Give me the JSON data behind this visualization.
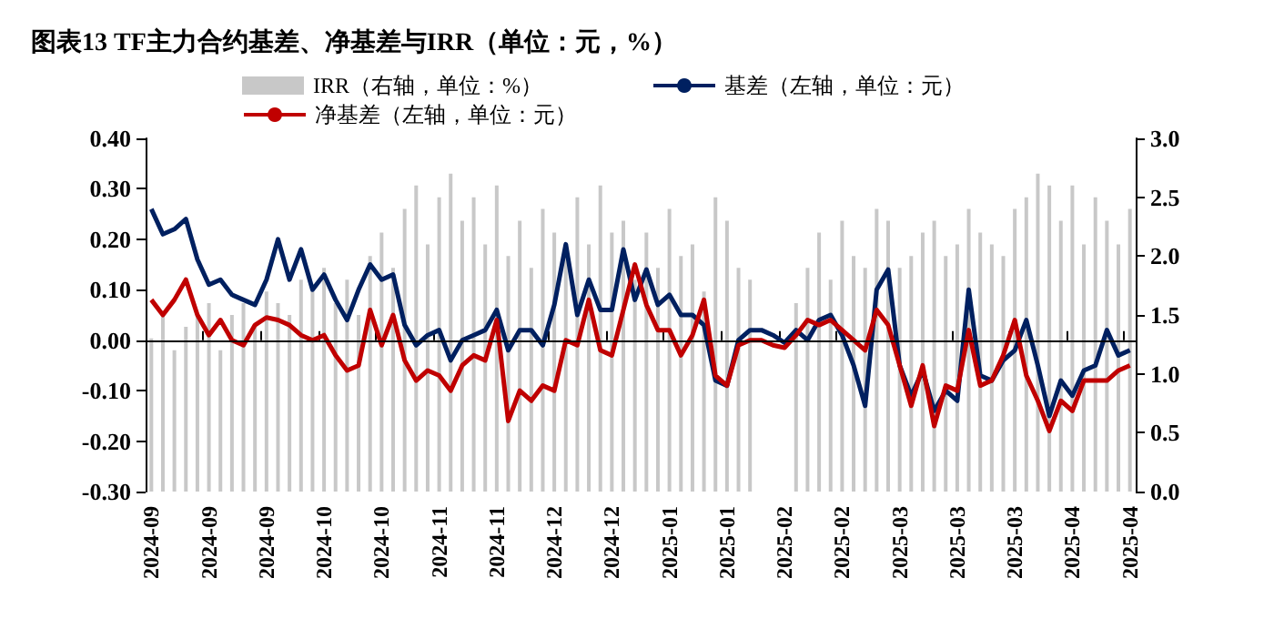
{
  "chart_data": {
    "type": "line",
    "title": "图表13 TF主力合约基差、净基差与IRR（单位：元，%）",
    "categories": [
      "2024-09",
      null,
      null,
      null,
      null,
      "2024-09",
      null,
      null,
      null,
      null,
      "2024-09",
      null,
      null,
      null,
      null,
      "2024-10",
      null,
      null,
      null,
      null,
      "2024-10",
      null,
      null,
      null,
      null,
      "2024-11",
      null,
      null,
      null,
      null,
      "2024-11",
      null,
      null,
      null,
      null,
      "2024-12",
      null,
      null,
      null,
      null,
      "2024-12",
      null,
      null,
      null,
      null,
      "2025-01",
      null,
      null,
      null,
      null,
      "2025-01",
      null,
      null,
      null,
      null,
      "2025-02",
      null,
      null,
      null,
      null,
      "2025-02",
      null,
      null,
      null,
      null,
      "2025-03",
      null,
      null,
      null,
      null,
      "2025-03",
      null,
      null,
      null,
      null,
      "2025-03",
      null,
      null,
      null,
      null,
      "2025-04",
      null,
      null,
      null,
      null,
      "2025-04"
    ],
    "series": [
      {
        "name": "IRR（右轴，单位：%）",
        "type": "bar",
        "axis": "y2",
        "color": "#c8c8c8",
        "values": [
          1.3,
          1.5,
          1.2,
          1.4,
          1.5,
          1.6,
          1.2,
          1.5,
          1.6,
          1.4,
          1.7,
          1.6,
          1.5,
          1.8,
          1.7,
          1.9,
          1.6,
          1.8,
          1.5,
          2.0,
          2.2,
          1.9,
          2.4,
          2.6,
          2.1,
          2.5,
          2.7,
          2.3,
          2.5,
          2.1,
          2.6,
          2.0,
          2.3,
          1.9,
          2.4,
          2.2,
          2.0,
          2.5,
          2.1,
          2.6,
          2.2,
          2.3,
          1.8,
          2.2,
          1.9,
          2.4,
          2.0,
          2.1,
          1.7,
          2.5,
          2.3,
          1.9,
          1.8,
          null,
          null,
          null,
          1.6,
          1.9,
          2.2,
          1.8,
          2.3,
          2.0,
          1.9,
          2.4,
          2.3,
          1.9,
          2.0,
          2.2,
          2.3,
          2.0,
          2.1,
          2.4,
          2.2,
          2.1,
          2.0,
          2.4,
          2.5,
          2.7,
          2.6,
          2.3,
          2.6,
          2.1,
          2.5,
          2.3,
          2.1,
          2.4
        ]
      },
      {
        "name": "基差（左轴，单位：元）",
        "color": "#002060",
        "values": [
          0.26,
          0.21,
          0.22,
          0.24,
          0.16,
          0.11,
          0.12,
          0.09,
          0.08,
          0.07,
          0.12,
          0.2,
          0.12,
          0.18,
          0.1,
          0.13,
          0.08,
          0.04,
          0.1,
          0.15,
          0.12,
          0.13,
          0.03,
          -0.01,
          0.01,
          0.02,
          -0.04,
          0,
          0.01,
          0.02,
          0.06,
          -0.02,
          0.02,
          0.02,
          -0.01,
          0.07,
          0.19,
          0.05,
          0.12,
          0.06,
          0.06,
          0.18,
          0.08,
          0.14,
          0.07,
          0.09,
          0.05,
          0.05,
          0.03,
          -0.08,
          -0.09,
          0.0,
          0.02,
          0.02,
          0.01,
          -0.005,
          0.02,
          0.0,
          0.04,
          0.05,
          0.01,
          -0.05,
          -0.13,
          0.1,
          0.14,
          -0.05,
          -0.11,
          -0.06,
          -0.14,
          -0.1,
          -0.12,
          0.1,
          -0.07,
          -0.08,
          -0.04,
          -0.02,
          0.04,
          -0.05,
          -0.15,
          -0.08,
          -0.11,
          -0.06,
          -0.05,
          0.02,
          -0.03,
          -0.02
        ]
      },
      {
        "name": "净基差（左轴，单位：元）",
        "color": "#c00000",
        "values": [
          0.08,
          0.05,
          0.08,
          0.12,
          0.05,
          0.01,
          0.04,
          0.0,
          -0.01,
          0.03,
          0.045,
          0.04,
          0.03,
          0.01,
          0.0,
          0.01,
          -0.03,
          -0.06,
          -0.05,
          0.06,
          -0.01,
          0.05,
          -0.04,
          -0.08,
          -0.06,
          -0.07,
          -0.1,
          -0.05,
          -0.03,
          -0.04,
          0.04,
          -0.16,
          -0.1,
          -0.12,
          -0.09,
          -0.1,
          0.0,
          -0.01,
          0.08,
          -0.02,
          -0.03,
          0.06,
          0.15,
          0.07,
          0.02,
          0.02,
          -0.03,
          0.01,
          0.08,
          -0.07,
          -0.09,
          -0.01,
          0.0,
          0.0,
          -0.01,
          -0.015,
          0.01,
          0.04,
          0.03,
          0.04,
          0.02,
          0.0,
          -0.02,
          0.06,
          0.03,
          -0.05,
          -0.13,
          -0.05,
          -0.17,
          -0.09,
          -0.1,
          0.02,
          -0.09,
          -0.08,
          -0.03,
          0.04,
          -0.07,
          -0.12,
          -0.18,
          -0.12,
          -0.14,
          -0.08,
          -0.08,
          -0.08,
          -0.06,
          -0.05
        ]
      }
    ],
    "ylim": [
      -0.3,
      0.4
    ],
    "yticks": [
      {
        "value": -0.3,
        "label": "-0.30"
      },
      {
        "value": -0.2,
        "label": "-0.20"
      },
      {
        "value": -0.1,
        "label": "-0.10"
      },
      {
        "value": 0,
        "label": "0.00"
      },
      {
        "value": 0.1,
        "label": "0.10"
      },
      {
        "value": 0.2,
        "label": "0.20"
      },
      {
        "value": 0.3,
        "label": "0.30"
      },
      {
        "value": 0.4,
        "label": "0.40"
      }
    ],
    "y2lim": [
      0,
      3
    ],
    "y2ticks": [
      {
        "value": 0,
        "label": "0.0"
      },
      {
        "value": 0.5,
        "label": "0.5"
      },
      {
        "value": 1,
        "label": "1.0"
      },
      {
        "value": 1.5,
        "label": "1.5"
      },
      {
        "value": 2,
        "label": "2.0"
      },
      {
        "value": 2.5,
        "label": "2.5"
      },
      {
        "value": 3,
        "label": "3.0"
      }
    ],
    "ref_lines": [
      {
        "axis": "y",
        "value": 0,
        "color": "#000000"
      }
    ],
    "legend": "top",
    "grid": false
  }
}
